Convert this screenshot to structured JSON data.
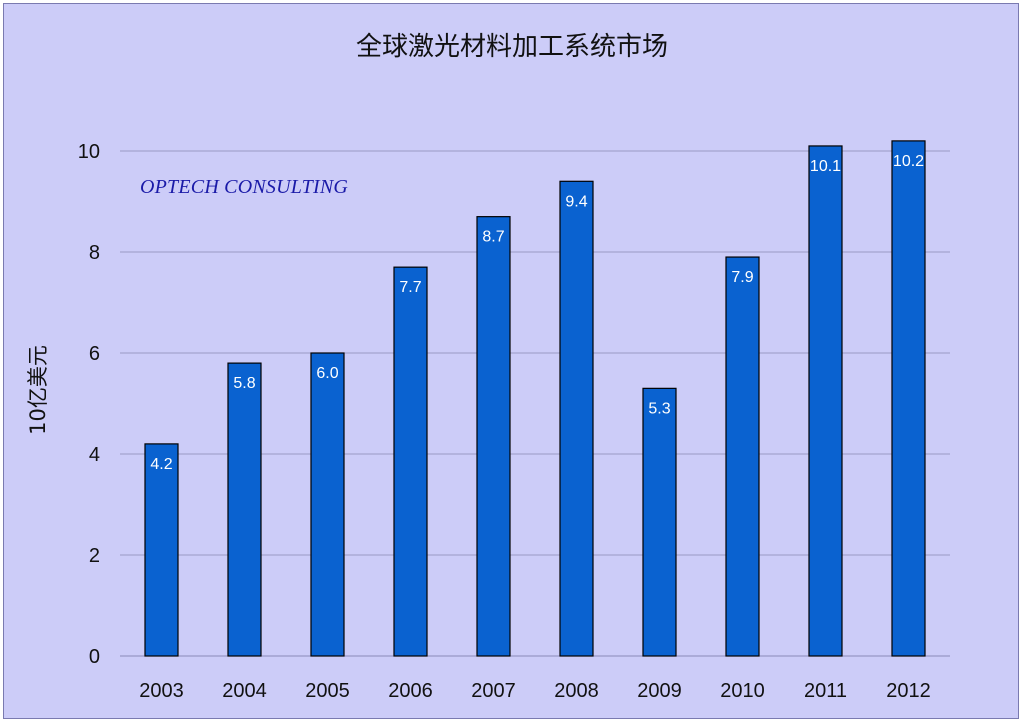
{
  "chart_data": {
    "type": "bar",
    "title": "全球激光材料加工系统市场",
    "ylabel": "10亿美元",
    "xlabel": "",
    "annotation": "OPTECH CONSULTING",
    "categories": [
      "2003",
      "2004",
      "2005",
      "2006",
      "2007",
      "2008",
      "2009",
      "2010",
      "2011",
      "2012"
    ],
    "values": [
      4.2,
      5.8,
      6.0,
      7.7,
      8.7,
      9.4,
      5.3,
      7.9,
      10.1,
      10.2
    ],
    "value_labels": [
      "4.2",
      "5.8",
      "6.0",
      "7.7",
      "8.7",
      "9.4",
      "5.3",
      "7.9",
      "10.1",
      "10.2"
    ],
    "ylim": [
      0,
      10
    ],
    "yticks": [
      "0",
      "2",
      "4",
      "6",
      "8",
      "10"
    ],
    "grid": true,
    "bar_color": "#0a62d0",
    "background_color": "#ccccf8"
  }
}
